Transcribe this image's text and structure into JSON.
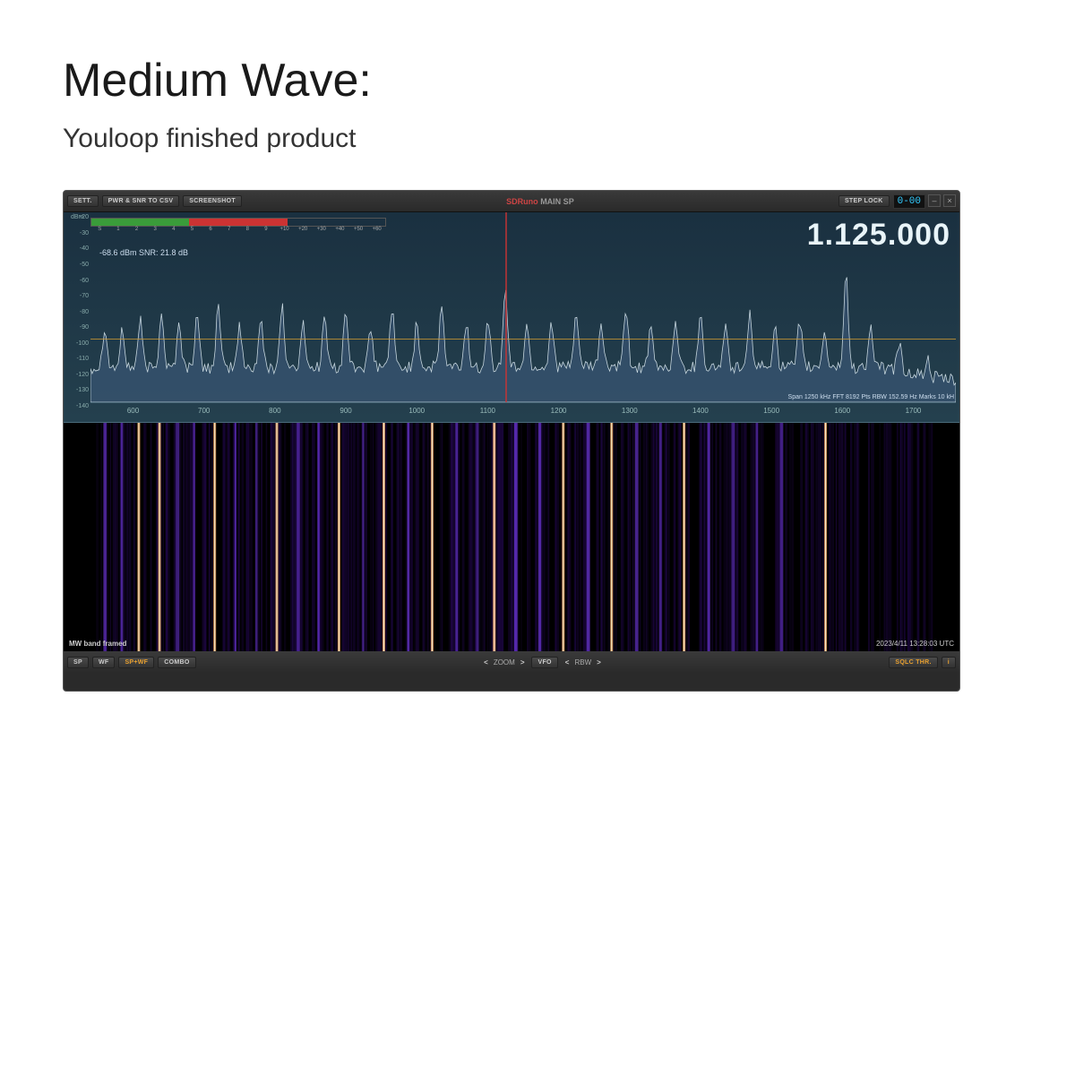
{
  "heading": {
    "title": "Medium Wave:",
    "subtitle": "Youloop finished product"
  },
  "toolbar": {
    "sett": "SETT.",
    "pwr": "PWR & SNR TO CSV",
    "screenshot": "SCREENSHOT",
    "brand": "SDRuno",
    "brand_sub": "MAIN SP",
    "steplock": "STEP LOCK",
    "lcd": "0-00"
  },
  "spectrum": {
    "freq": "1.125.000",
    "dbm_unit": "dBm",
    "y_ticks": [
      -20,
      -30,
      -40,
      -50,
      -60,
      -70,
      -80,
      -90,
      -100,
      -110,
      -120,
      -130,
      -140
    ],
    "y_min": -140,
    "y_max": -20,
    "x_ticks": [
      600,
      700,
      800,
      900,
      1000,
      1100,
      1200,
      1300,
      1400,
      1500,
      1600,
      1700
    ],
    "x_min": 540,
    "x_max": 1760,
    "tune_freq": 1125,
    "baseline_db": -100,
    "info": "-68.6 dBm    SNR: 21.8 dB",
    "fft_info": "Span 1250 kHz   FFT 8192 Pts   RBW 152.59 Hz   Marks 10 kH",
    "meter_segments": [
      {
        "w": 55,
        "c": "#3a9c3a"
      },
      {
        "w": 8,
        "c": "#cc3333"
      },
      {
        "w": 37,
        "c": "#1a3040"
      }
    ],
    "meter_labels": [
      "S",
      "1",
      "2",
      "3",
      "4",
      "5",
      "6",
      "7",
      "8",
      "9",
      "+10",
      "+20",
      "+30",
      "+40",
      "+50",
      "+60"
    ],
    "trace_color": "#c8d8e0",
    "fill_color": "rgba(70,100,140,0.45)",
    "peaks": [
      {
        "x": 560,
        "h": -92
      },
      {
        "x": 585,
        "h": -95
      },
      {
        "x": 610,
        "h": -88
      },
      {
        "x": 640,
        "h": -82
      },
      {
        "x": 665,
        "h": -90
      },
      {
        "x": 690,
        "h": -85
      },
      {
        "x": 720,
        "h": -80
      },
      {
        "x": 750,
        "h": -92
      },
      {
        "x": 780,
        "h": -88
      },
      {
        "x": 810,
        "h": -78
      },
      {
        "x": 840,
        "h": -90
      },
      {
        "x": 870,
        "h": -85
      },
      {
        "x": 900,
        "h": -82
      },
      {
        "x": 935,
        "h": -95
      },
      {
        "x": 965,
        "h": -80
      },
      {
        "x": 1000,
        "h": -88
      },
      {
        "x": 1035,
        "h": -78
      },
      {
        "x": 1070,
        "h": -90
      },
      {
        "x": 1100,
        "h": -85
      },
      {
        "x": 1125,
        "h": -68
      },
      {
        "x": 1155,
        "h": -92
      },
      {
        "x": 1190,
        "h": -88
      },
      {
        "x": 1225,
        "h": -82
      },
      {
        "x": 1260,
        "h": -90
      },
      {
        "x": 1295,
        "h": -80
      },
      {
        "x": 1330,
        "h": -94
      },
      {
        "x": 1365,
        "h": -88
      },
      {
        "x": 1400,
        "h": -82
      },
      {
        "x": 1435,
        "h": -92
      },
      {
        "x": 1470,
        "h": -85
      },
      {
        "x": 1505,
        "h": -90
      },
      {
        "x": 1540,
        "h": -88
      },
      {
        "x": 1575,
        "h": -95
      },
      {
        "x": 1605,
        "h": -58
      },
      {
        "x": 1640,
        "h": -92
      },
      {
        "x": 1680,
        "h": -100
      },
      {
        "x": 1720,
        "h": -108
      }
    ],
    "noise_floor": -118
  },
  "waterfall": {
    "label": "MW band framed",
    "time": "2023/4/11 13:28:03 UTC",
    "bg": "#000",
    "colors": {
      "low": "#0a0020",
      "mid": "#2a0a60",
      "high": "#6030c0",
      "hot": "#e8a060",
      "hottest": "#f8f0d0"
    },
    "strong_lines": [
      610,
      640,
      720,
      810,
      900,
      965,
      1035,
      1125,
      1225,
      1295,
      1400,
      1605
    ],
    "medium_lines": [
      560,
      585,
      665,
      690,
      750,
      780,
      840,
      870,
      935,
      1000,
      1070,
      1100,
      1155,
      1190,
      1260,
      1330,
      1365,
      1435,
      1470,
      1505,
      1540
    ],
    "weak_fill": true
  },
  "bottombar": {
    "sp": "SP",
    "wf": "WF",
    "spwf": "SP+WF",
    "combo": "COMBO",
    "zoom": "ZOOM",
    "vfo": "VFO",
    "rbw": "RBW",
    "sqlc": "SQLC THR.",
    "i": "i"
  }
}
